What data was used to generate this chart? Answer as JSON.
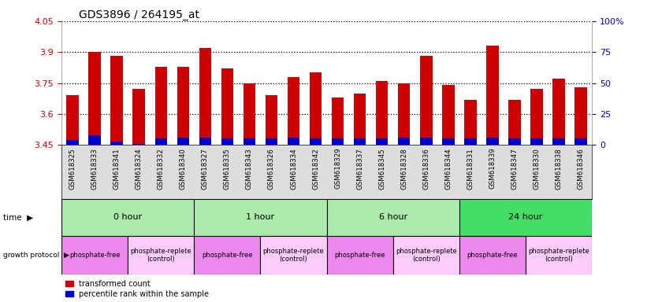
{
  "title": "GDS3896 / 264195_at",
  "samples": [
    "GSM618325",
    "GSM618333",
    "GSM618341",
    "GSM618324",
    "GSM618332",
    "GSM618340",
    "GSM618327",
    "GSM618335",
    "GSM618343",
    "GSM618326",
    "GSM618334",
    "GSM618342",
    "GSM618329",
    "GSM618337",
    "GSM618345",
    "GSM618328",
    "GSM618336",
    "GSM618344",
    "GSM618331",
    "GSM618339",
    "GSM618347",
    "GSM618330",
    "GSM618338",
    "GSM618346"
  ],
  "red_values": [
    3.69,
    3.9,
    3.88,
    3.72,
    3.83,
    3.83,
    3.92,
    3.82,
    3.75,
    3.69,
    3.78,
    3.8,
    3.68,
    3.7,
    3.76,
    3.75,
    3.88,
    3.74,
    3.67,
    3.93,
    3.67,
    3.72,
    3.77,
    3.73
  ],
  "blue_pct": [
    4,
    8,
    3,
    1,
    5,
    6,
    6,
    5,
    5,
    5,
    6,
    5,
    5,
    5,
    5,
    6,
    6,
    5,
    5,
    6,
    5,
    5,
    5,
    5
  ],
  "ymin": 3.45,
  "ymax": 4.05,
  "yticks_left": [
    3.45,
    3.6,
    3.75,
    3.9,
    4.05
  ],
  "ytick_labels_left": [
    "3.45",
    "3.6",
    "3.75",
    "3.9",
    "4.05"
  ],
  "yticks_right": [
    0,
    25,
    50,
    75,
    100
  ],
  "ytick_labels_right": [
    "0",
    "25",
    "50",
    "75",
    "100%"
  ],
  "time_groups": [
    {
      "label": "0 hour",
      "start": 0,
      "end": 6,
      "color": "#AAEAAA"
    },
    {
      "label": "1 hour",
      "start": 6,
      "end": 12,
      "color": "#AAEAAA"
    },
    {
      "label": "6 hour",
      "start": 12,
      "end": 18,
      "color": "#AAEAAA"
    },
    {
      "label": "24 hour",
      "start": 18,
      "end": 24,
      "color": "#44DD66"
    }
  ],
  "protocol_groups": [
    {
      "label": "phosphate-free",
      "start": 0,
      "end": 3,
      "color": "#EE88EE"
    },
    {
      "label": "phosphate-replete\n(control)",
      "start": 3,
      "end": 6,
      "color": "#FFCCFF"
    },
    {
      "label": "phosphate-free",
      "start": 6,
      "end": 9,
      "color": "#EE88EE"
    },
    {
      "label": "phosphate-replete\n(control)",
      "start": 9,
      "end": 12,
      "color": "#FFCCFF"
    },
    {
      "label": "phosphate-free",
      "start": 12,
      "end": 15,
      "color": "#EE88EE"
    },
    {
      "label": "phosphate-replete\n(control)",
      "start": 15,
      "end": 18,
      "color": "#FFCCFF"
    },
    {
      "label": "phosphate-free",
      "start": 18,
      "end": 21,
      "color": "#EE88EE"
    },
    {
      "label": "phosphate-replete\n(control)",
      "start": 21,
      "end": 24,
      "color": "#FFCCFF"
    }
  ],
  "bar_color_red": "#CC0000",
  "bar_color_blue": "#0000CC",
  "bar_width": 0.55,
  "tick_color_left": "#CC0000",
  "tick_color_right": "#0000CC",
  "dotted_line_color": "#000000",
  "xticklabel_bg": "#DDDDDD"
}
